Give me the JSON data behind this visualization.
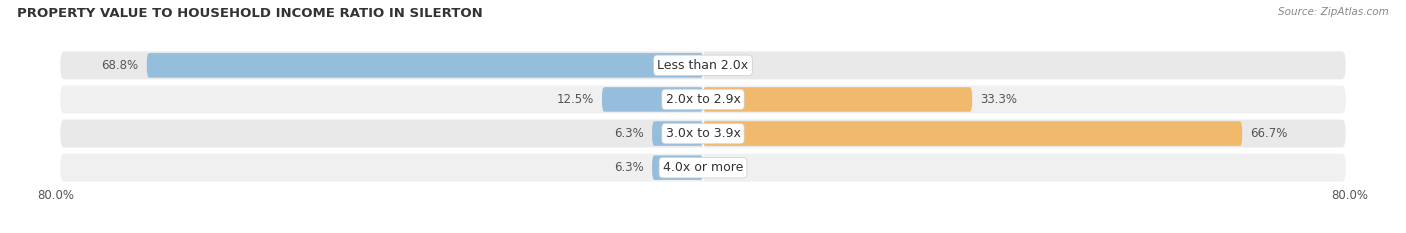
{
  "title": "PROPERTY VALUE TO HOUSEHOLD INCOME RATIO IN SILERTON",
  "source": "Source: ZipAtlas.com",
  "categories": [
    "Less than 2.0x",
    "2.0x to 2.9x",
    "3.0x to 3.9x",
    "4.0x or more"
  ],
  "without_mortgage": [
    68.8,
    12.5,
    6.3,
    6.3
  ],
  "with_mortgage": [
    0.0,
    33.3,
    66.7,
    0.0
  ],
  "xlim": [
    -80.0,
    80.0
  ],
  "without_mortgage_color": "#95bedd",
  "with_mortgage_color": "#f0b96b",
  "bar_height": 0.72,
  "row_bg_colors": [
    "#e9e9e9",
    "#f0f0f0"
  ],
  "title_fontsize": 9.5,
  "label_fontsize": 8.5,
  "cat_fontsize": 9,
  "tick_fontsize": 8.5,
  "source_fontsize": 7.5,
  "background_color": "#ffffff"
}
